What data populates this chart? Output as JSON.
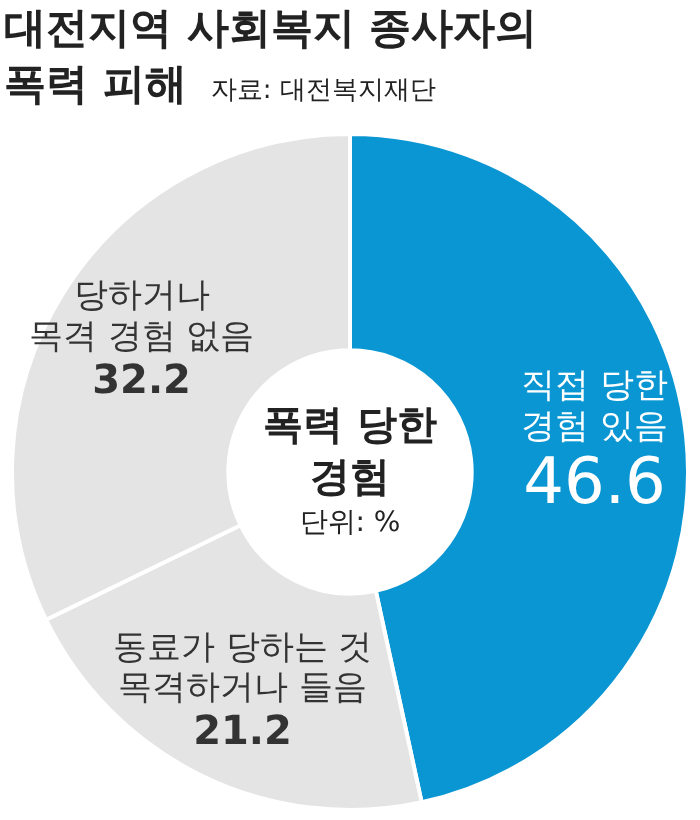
{
  "chart_data": {
    "type": "donut",
    "title": "대전지역 사회복지 종사자의\n폭력 피해",
    "subtitle": "자료: 대전복지재단",
    "categories": [
      "직접 당한\n경험 있음",
      "동료가 당하는 것\n목격하거나 들음",
      "당하거나\n목격 경험 없음"
    ],
    "values": [
      46.6,
      21.2,
      32.2
    ],
    "colors": [
      "#0a96d2",
      "#e4e4e4",
      "#e4e4e4"
    ],
    "annotations": [
      "폭력 당한\n경험",
      "단위: %"
    ],
    "data_labels": true,
    "legend": false
  }
}
